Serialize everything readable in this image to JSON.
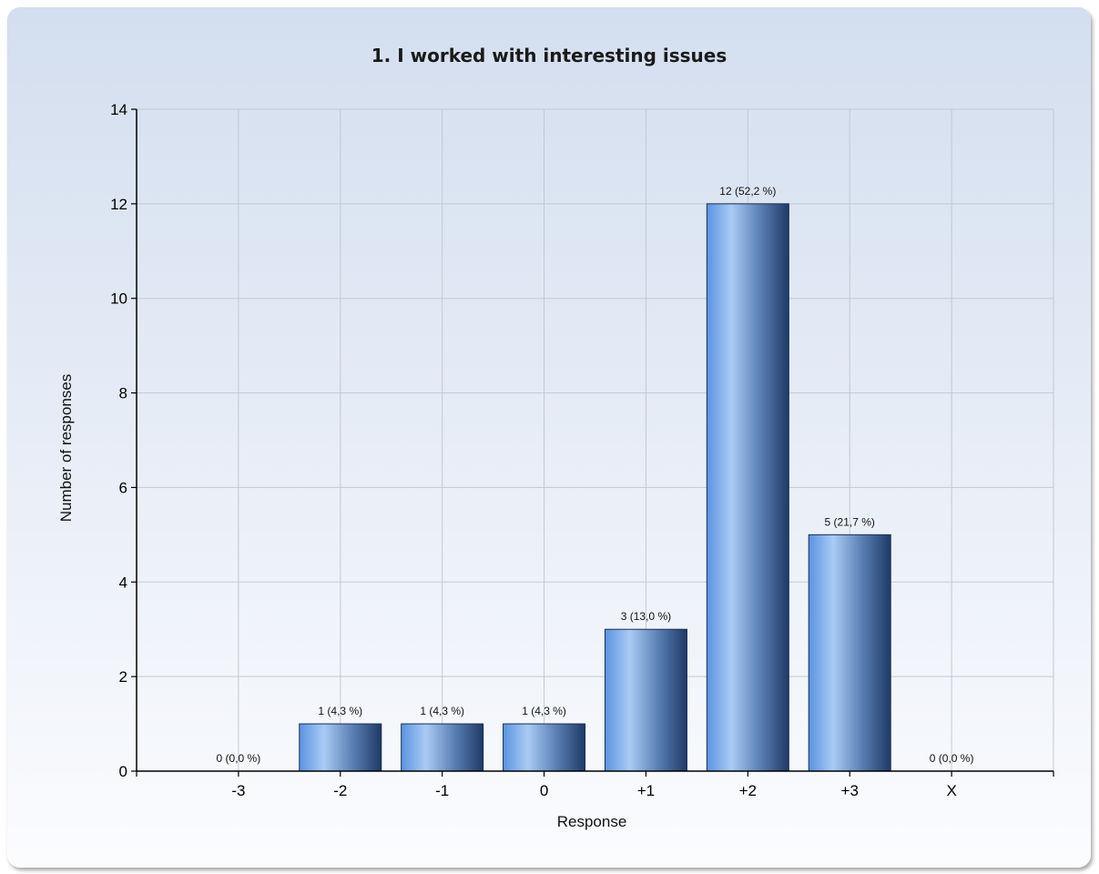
{
  "chart_data": {
    "type": "bar",
    "title": "1. I worked with interesting issues",
    "xlabel": "Response",
    "ylabel": "Number of responses",
    "categories": [
      "-3",
      "-2",
      "-1",
      "0",
      "+1",
      "+2",
      "+3",
      "X"
    ],
    "values": [
      0,
      1,
      1,
      1,
      3,
      12,
      5,
      0
    ],
    "data_labels": [
      "0 (0,0 %)",
      "1 (4,3 %)",
      "1 (4,3 %)",
      "1 (4,3 %)",
      "3 (13,0 %)",
      "12 (52,2 %)",
      "5 (21,7 %)",
      "0 (0,0 %)"
    ],
    "ylim": [
      0,
      14
    ],
    "yticks": [
      0,
      2,
      4,
      6,
      8,
      10,
      12,
      14
    ],
    "grid": true,
    "legend": "none",
    "colors": {
      "bar_light": "#a9cbf5",
      "bar_mid": "#5b93e0",
      "bar_dark": "#1f3a66",
      "grid": "#c2c9d4",
      "axis": "#000000"
    }
  }
}
